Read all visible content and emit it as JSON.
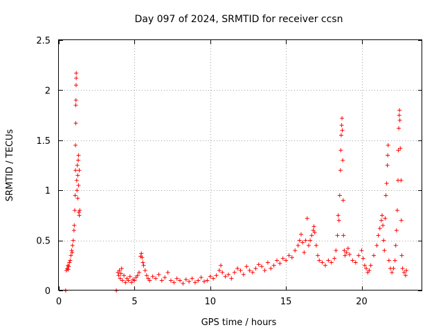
{
  "chart_data": {
    "type": "scatter",
    "title": "Day 097 of 2024, SRMTID for receiver ccsn",
    "xlabel": "GPS time / hours",
    "ylabel": "SRMTID / TECUs",
    "xlim": [
      0,
      24
    ],
    "ylim": [
      0,
      2.5
    ],
    "xticks": [
      0,
      5,
      10,
      15,
      20
    ],
    "xtick_labels": [
      "0",
      "5",
      "10",
      "15",
      "20"
    ],
    "yticks": [
      0,
      0.5,
      1,
      1.5,
      2,
      2.5
    ],
    "ytick_labels": [
      "0",
      "0.5",
      "1",
      "1.5",
      "2",
      "2.5"
    ],
    "grid": true,
    "marker": "+",
    "marker_color": "#ff0000",
    "series": [
      {
        "name": "SRMTID",
        "points": [
          [
            0.45,
            0.0
          ],
          [
            0.5,
            0.2
          ],
          [
            0.55,
            0.22
          ],
          [
            0.6,
            0.25
          ],
          [
            0.62,
            0.21
          ],
          [
            0.65,
            0.24
          ],
          [
            0.7,
            0.28
          ],
          [
            0.75,
            0.3
          ],
          [
            0.8,
            0.35
          ],
          [
            0.85,
            0.4
          ],
          [
            0.88,
            0.38
          ],
          [
            0.9,
            0.45
          ],
          [
            0.95,
            0.5
          ],
          [
            1.0,
            0.6
          ],
          [
            1.02,
            0.65
          ],
          [
            1.05,
            0.8
          ],
          [
            1.08,
            0.95
          ],
          [
            1.1,
            1.2
          ],
          [
            1.1,
            1.45
          ],
          [
            1.12,
            1.67
          ],
          [
            1.12,
            1.85
          ],
          [
            1.13,
            1.9
          ],
          [
            1.14,
            2.05
          ],
          [
            1.15,
            2.12
          ],
          [
            1.15,
            2.17
          ],
          [
            1.18,
            1.1
          ],
          [
            1.2,
            1.0
          ],
          [
            1.22,
            1.25
          ],
          [
            1.25,
            1.15
          ],
          [
            1.25,
            0.92
          ],
          [
            1.28,
            1.3
          ],
          [
            1.3,
            1.35
          ],
          [
            1.3,
            1.05
          ],
          [
            1.32,
            0.78
          ],
          [
            1.35,
            0.75
          ],
          [
            1.35,
            1.2
          ],
          [
            1.38,
            0.8
          ],
          [
            3.8,
            0.0
          ],
          [
            3.9,
            0.18
          ],
          [
            3.95,
            0.15
          ],
          [
            4.0,
            0.2
          ],
          [
            4.05,
            0.12
          ],
          [
            4.1,
            0.17
          ],
          [
            4.15,
            0.22
          ],
          [
            4.2,
            0.1
          ],
          [
            4.3,
            0.15
          ],
          [
            4.4,
            0.08
          ],
          [
            4.5,
            0.12
          ],
          [
            4.6,
            0.1
          ],
          [
            4.7,
            0.14
          ],
          [
            4.8,
            0.08
          ],
          [
            4.9,
            0.11
          ],
          [
            5.0,
            0.1
          ],
          [
            5.1,
            0.13
          ],
          [
            5.2,
            0.15
          ],
          [
            5.3,
            0.18
          ],
          [
            5.4,
            0.34
          ],
          [
            5.45,
            0.37
          ],
          [
            5.5,
            0.33
          ],
          [
            5.55,
            0.28
          ],
          [
            5.6,
            0.25
          ],
          [
            5.7,
            0.2
          ],
          [
            5.8,
            0.15
          ],
          [
            5.9,
            0.12
          ],
          [
            6.0,
            0.1
          ],
          [
            6.2,
            0.14
          ],
          [
            6.4,
            0.12
          ],
          [
            6.6,
            0.16
          ],
          [
            6.8,
            0.1
          ],
          [
            7.0,
            0.13
          ],
          [
            7.2,
            0.18
          ],
          [
            7.4,
            0.1
          ],
          [
            7.6,
            0.08
          ],
          [
            7.8,
            0.12
          ],
          [
            8.0,
            0.1
          ],
          [
            8.2,
            0.07
          ],
          [
            8.4,
            0.11
          ],
          [
            8.6,
            0.09
          ],
          [
            8.8,
            0.12
          ],
          [
            9.0,
            0.08
          ],
          [
            9.2,
            0.1
          ],
          [
            9.4,
            0.13
          ],
          [
            9.6,
            0.09
          ],
          [
            9.8,
            0.1
          ],
          [
            10.0,
            0.14
          ],
          [
            10.2,
            0.12
          ],
          [
            10.4,
            0.15
          ],
          [
            10.6,
            0.2
          ],
          [
            10.7,
            0.25
          ],
          [
            10.8,
            0.18
          ],
          [
            11.0,
            0.14
          ],
          [
            11.2,
            0.16
          ],
          [
            11.4,
            0.12
          ],
          [
            11.6,
            0.18
          ],
          [
            11.8,
            0.22
          ],
          [
            12.0,
            0.2
          ],
          [
            12.2,
            0.16
          ],
          [
            12.4,
            0.24
          ],
          [
            12.6,
            0.2
          ],
          [
            12.8,
            0.18
          ],
          [
            13.0,
            0.22
          ],
          [
            13.2,
            0.26
          ],
          [
            13.4,
            0.24
          ],
          [
            13.6,
            0.2
          ],
          [
            13.8,
            0.28
          ],
          [
            14.0,
            0.22
          ],
          [
            14.2,
            0.25
          ],
          [
            14.4,
            0.3
          ],
          [
            14.6,
            0.27
          ],
          [
            14.8,
            0.32
          ],
          [
            15.0,
            0.3
          ],
          [
            15.2,
            0.35
          ],
          [
            15.4,
            0.33
          ],
          [
            15.6,
            0.4
          ],
          [
            15.8,
            0.45
          ],
          [
            15.9,
            0.5
          ],
          [
            16.0,
            0.56
          ],
          [
            16.1,
            0.48
          ],
          [
            16.2,
            0.38
          ],
          [
            16.3,
            0.5
          ],
          [
            16.4,
            0.72
          ],
          [
            16.5,
            0.45
          ],
          [
            16.6,
            0.5
          ],
          [
            16.7,
            0.55
          ],
          [
            16.8,
            0.6
          ],
          [
            16.85,
            0.64
          ],
          [
            16.9,
            0.58
          ],
          [
            17.0,
            0.45
          ],
          [
            17.1,
            0.35
          ],
          [
            17.2,
            0.3
          ],
          [
            17.4,
            0.28
          ],
          [
            17.6,
            0.25
          ],
          [
            17.8,
            0.3
          ],
          [
            18.0,
            0.28
          ],
          [
            18.2,
            0.32
          ],
          [
            18.3,
            0.4
          ],
          [
            18.4,
            0.55
          ],
          [
            18.45,
            0.75
          ],
          [
            18.5,
            0.7
          ],
          [
            18.55,
            0.95
          ],
          [
            18.6,
            1.2
          ],
          [
            18.62,
            1.4
          ],
          [
            18.65,
            1.55
          ],
          [
            18.68,
            1.65
          ],
          [
            18.7,
            1.72
          ],
          [
            18.72,
            1.6
          ],
          [
            18.75,
            1.3
          ],
          [
            18.78,
            0.9
          ],
          [
            18.8,
            0.55
          ],
          [
            18.85,
            0.4
          ],
          [
            18.9,
            0.35
          ],
          [
            19.0,
            0.38
          ],
          [
            19.1,
            0.42
          ],
          [
            19.2,
            0.36
          ],
          [
            19.4,
            0.3
          ],
          [
            19.6,
            0.28
          ],
          [
            19.8,
            0.35
          ],
          [
            20.0,
            0.4
          ],
          [
            20.1,
            0.32
          ],
          [
            20.2,
            0.25
          ],
          [
            20.3,
            0.22
          ],
          [
            20.4,
            0.18
          ],
          [
            20.5,
            0.2
          ],
          [
            20.6,
            0.25
          ],
          [
            20.8,
            0.35
          ],
          [
            21.0,
            0.45
          ],
          [
            21.1,
            0.55
          ],
          [
            21.2,
            0.62
          ],
          [
            21.3,
            0.7
          ],
          [
            21.35,
            0.75
          ],
          [
            21.4,
            0.65
          ],
          [
            21.45,
            0.5
          ],
          [
            21.5,
            0.4
          ],
          [
            21.55,
            0.72
          ],
          [
            21.6,
            0.95
          ],
          [
            21.65,
            1.07
          ],
          [
            21.7,
            1.25
          ],
          [
            21.72,
            1.35
          ],
          [
            21.75,
            1.45
          ],
          [
            21.8,
            0.3
          ],
          [
            21.9,
            0.22
          ],
          [
            22.0,
            0.18
          ],
          [
            22.1,
            0.22
          ],
          [
            22.2,
            0.3
          ],
          [
            22.25,
            0.45
          ],
          [
            22.3,
            0.6
          ],
          [
            22.35,
            0.8
          ],
          [
            22.4,
            1.1
          ],
          [
            22.42,
            1.4
          ],
          [
            22.45,
            1.62
          ],
          [
            22.48,
            1.75
          ],
          [
            22.5,
            1.8
          ],
          [
            22.52,
            1.7
          ],
          [
            22.55,
            1.42
          ],
          [
            22.6,
            1.1
          ],
          [
            22.62,
            0.7
          ],
          [
            22.65,
            0.35
          ],
          [
            22.7,
            0.22
          ],
          [
            22.8,
            0.18
          ],
          [
            22.9,
            0.15
          ],
          [
            22.95,
            0.2
          ]
        ]
      }
    ]
  }
}
